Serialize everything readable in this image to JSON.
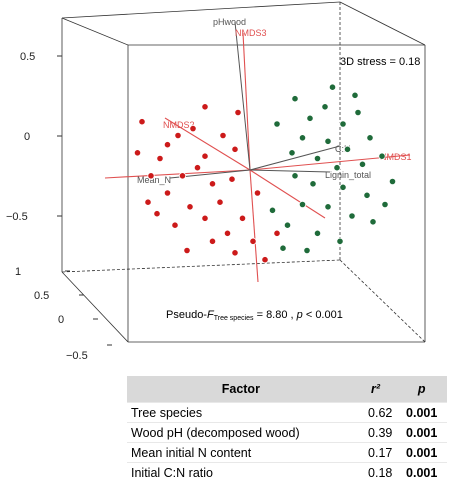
{
  "chart_data": {
    "type": "scatter",
    "stress_label": "3D stress = 0.18",
    "pseudo_f": {
      "prefix": "Pseudo-",
      "f_letter": "F",
      "subscript": "Tree species",
      "value_text": " = 8.80 , ",
      "p_letter": "p",
      "p_text": " < 0.001"
    },
    "upper_ticks": [
      "0.5",
      "0",
      "−0.5"
    ],
    "lower_ticks": [
      "1",
      "0.5",
      "0",
      "−0.5"
    ],
    "vectors": [
      {
        "label": "NMDS1",
        "color": "#e05050"
      },
      {
        "label": "NMDS2",
        "color": "#e05050"
      },
      {
        "label": "NMDS3",
        "color": "#e05050"
      },
      {
        "label": "pHwood",
        "color": "#555555"
      },
      {
        "label": "C:N",
        "color": "#555555"
      },
      {
        "label": "Lignin_total",
        "color": "#555555"
      },
      {
        "label": "Mean_N",
        "color": "#555555"
      }
    ],
    "series": [
      {
        "color": "#cc1a1a",
        "points": [
          [
            -0.72,
            0.42,
            0.0
          ],
          [
            -0.55,
            0.22,
            0.0
          ],
          [
            -0.6,
            0.1,
            0.0
          ],
          [
            -0.48,
            0.3,
            0.0
          ],
          [
            -0.38,
            0.36,
            0.0
          ],
          [
            -0.3,
            0.12,
            0.0
          ],
          [
            -0.66,
            -0.05,
            0.0
          ],
          [
            -0.55,
            -0.2,
            0.0
          ],
          [
            -0.45,
            -0.05,
            0.0
          ],
          [
            -0.35,
            0.02,
            0.0
          ],
          [
            -0.25,
            -0.12,
            0.0
          ],
          [
            -0.4,
            -0.32,
            0.0
          ],
          [
            -0.62,
            -0.38,
            0.0
          ],
          [
            -0.5,
            -0.48,
            0.0
          ],
          [
            -0.3,
            -0.42,
            0.0
          ],
          [
            -0.2,
            -0.28,
            0.0
          ],
          [
            -0.15,
            -0.55,
            0.0
          ],
          [
            -0.05,
            -0.42,
            0.0
          ],
          [
            0.02,
            -0.62,
            0.0
          ],
          [
            -0.1,
            -0.72,
            0.0
          ],
          [
            0.1,
            -0.78,
            0.0
          ],
          [
            -0.25,
            -0.62,
            0.0
          ],
          [
            -0.08,
            0.5,
            0.0
          ],
          [
            -0.18,
            0.3,
            0.0
          ],
          [
            -0.1,
            0.18,
            0.0
          ],
          [
            -0.75,
            0.15,
            0.0
          ],
          [
            -0.68,
            -0.28,
            0.0
          ],
          [
            -0.12,
            -0.08,
            0.0
          ],
          [
            0.05,
            -0.2,
            0.0
          ],
          [
            -0.42,
            -0.7,
            0.0
          ],
          [
            0.18,
            -0.55,
            0.0
          ],
          [
            -0.3,
            0.55,
            0.0
          ]
        ]
      },
      {
        "color": "#1f6b3a",
        "points": [
          [
            0.3,
            0.62,
            0.0
          ],
          [
            0.4,
            0.45,
            0.0
          ],
          [
            0.5,
            0.55,
            0.0
          ],
          [
            0.62,
            0.4,
            0.0
          ],
          [
            0.72,
            0.5,
            0.0
          ],
          [
            0.35,
            0.28,
            0.0
          ],
          [
            0.52,
            0.25,
            0.0
          ],
          [
            0.65,
            0.18,
            0.0
          ],
          [
            0.8,
            0.28,
            0.0
          ],
          [
            0.45,
            0.1,
            0.0
          ],
          [
            0.58,
            0.02,
            0.0
          ],
          [
            0.75,
            0.05,
            0.0
          ],
          [
            0.88,
            0.12,
            0.0
          ],
          [
            0.3,
            -0.05,
            0.0
          ],
          [
            0.42,
            -0.12,
            0.0
          ],
          [
            0.62,
            -0.15,
            0.0
          ],
          [
            0.78,
            -0.22,
            0.0
          ],
          [
            0.9,
            -0.3,
            0.0
          ],
          [
            0.35,
            -0.3,
            0.0
          ],
          [
            0.52,
            -0.32,
            0.0
          ],
          [
            0.68,
            -0.4,
            0.0
          ],
          [
            0.82,
            -0.45,
            0.0
          ],
          [
            0.25,
            -0.48,
            0.0
          ],
          [
            0.45,
            -0.55,
            0.0
          ],
          [
            0.6,
            -0.62,
            0.0
          ],
          [
            0.38,
            -0.7,
            0.0
          ],
          [
            0.22,
            -0.68,
            0.0
          ],
          [
            0.15,
            -0.35,
            0.0
          ],
          [
            0.95,
            -0.1,
            0.0
          ],
          [
            0.7,
            0.65,
            0.0
          ],
          [
            0.55,
            0.72,
            0.0
          ],
          [
            0.28,
            0.15,
            0.0
          ],
          [
            0.18,
            0.4,
            0.0
          ]
        ]
      }
    ]
  },
  "table": {
    "header": {
      "factor": "Factor",
      "r2": "r²",
      "p": "p"
    },
    "rows": [
      {
        "factor": "Tree species",
        "r2": "0.62",
        "p": "0.001"
      },
      {
        "factor": "Wood pH (decomposed wood)",
        "r2": "0.39",
        "p": "0.001"
      },
      {
        "factor": "Mean initial N content",
        "r2": "0.17",
        "p": "0.001"
      },
      {
        "factor": "Initial C:N ratio",
        "r2": "0.18",
        "p": "0.001"
      }
    ]
  }
}
